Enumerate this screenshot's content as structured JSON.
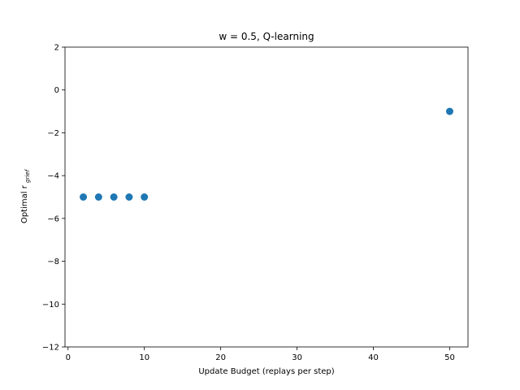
{
  "chart_data": {
    "type": "scatter",
    "title": "w = 0.5, Q-learning",
    "xlabel": "Update Budget (replays per step)",
    "ylabel_main": "Optimal r",
    "ylabel_subscript": "grief",
    "xlim": [
      -0.4,
      52.4
    ],
    "ylim": [
      -12,
      2
    ],
    "xticks": [
      0,
      10,
      20,
      30,
      40,
      50
    ],
    "yticks": [
      2,
      0,
      -2,
      -4,
      -6,
      -8,
      -10,
      -12
    ],
    "grid": false,
    "series": [
      {
        "color": "#1f77b4",
        "points": [
          {
            "x": 2,
            "y": -5
          },
          {
            "x": 4,
            "y": -5
          },
          {
            "x": 6,
            "y": -5
          },
          {
            "x": 8,
            "y": -5
          },
          {
            "x": 10,
            "y": -5
          },
          {
            "x": 50,
            "y": -1
          }
        ]
      }
    ]
  }
}
